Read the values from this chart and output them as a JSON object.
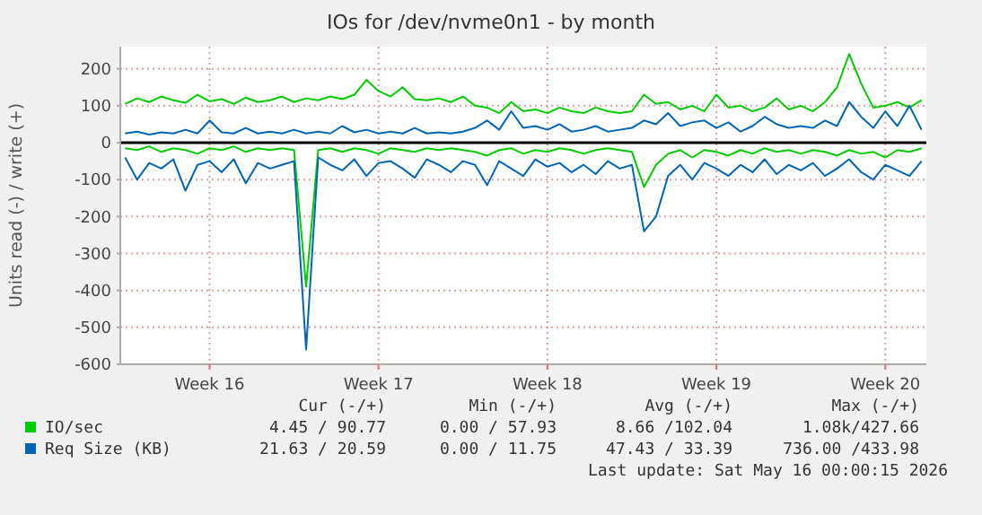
{
  "chart_data": {
    "type": "line",
    "title": "IOs for /dev/nvme0n1 - by month",
    "ylabel": "Units read (-) / write (+)",
    "categories": [
      null,
      null,
      null,
      null,
      null,
      null,
      null,
      "Week 16",
      null,
      null,
      null,
      null,
      null,
      null,
      null,
      null,
      null,
      null,
      null,
      null,
      null,
      "Week 17",
      null,
      null,
      null,
      null,
      null,
      null,
      null,
      null,
      null,
      null,
      null,
      null,
      null,
      "Week 18",
      null,
      null,
      null,
      null,
      null,
      null,
      null,
      null,
      null,
      null,
      null,
      null,
      null,
      "Week 19",
      null,
      null,
      null,
      null,
      null,
      null,
      null,
      null,
      null,
      null,
      null,
      null,
      null,
      "Week 20",
      null,
      null,
      null
    ],
    "series": [
      {
        "name": "IO/sec",
        "color": "#00cc00",
        "values": [
          105,
          120,
          110,
          125,
          115,
          108,
          130,
          112,
          118,
          105,
          122,
          110,
          115,
          125,
          110,
          120,
          115,
          125,
          118,
          130,
          170,
          140,
          125,
          150,
          118,
          115,
          120,
          110,
          125,
          100,
          95,
          80,
          110,
          85,
          90,
          80,
          95,
          85,
          80,
          95,
          85,
          80,
          85,
          130,
          105,
          110,
          90,
          100,
          85,
          130,
          95,
          100,
          85,
          95,
          120,
          90,
          100,
          85,
          110,
          150,
          240,
          160,
          95,
          100,
          110,
          95,
          115
        ]
      },
      {
        "color": "#00cc00",
        "values": [
          -15,
          -20,
          -10,
          -25,
          -15,
          -20,
          -30,
          -15,
          -20,
          -10,
          -25,
          -15,
          -20,
          -15,
          -20,
          -390,
          -20,
          -15,
          -25,
          -15,
          -20,
          -30,
          -15,
          -20,
          -25,
          -15,
          -20,
          -15,
          -20,
          -25,
          -35,
          -20,
          -15,
          -30,
          -20,
          -25,
          -15,
          -20,
          -30,
          -20,
          -15,
          -20,
          -25,
          -120,
          -60,
          -30,
          -20,
          -40,
          -20,
          -25,
          -35,
          -20,
          -30,
          -15,
          -25,
          -20,
          -30,
          -20,
          -25,
          -35,
          -20,
          -30,
          -25,
          -40,
          -20,
          -25,
          -15
        ]
      },
      {
        "name": "Req Size (KB)",
        "color": "#0066b3",
        "values": [
          25,
          30,
          22,
          28,
          25,
          35,
          25,
          60,
          28,
          25,
          40,
          25,
          30,
          25,
          35,
          25,
          30,
          25,
          45,
          28,
          35,
          25,
          30,
          25,
          40,
          25,
          28,
          25,
          30,
          40,
          60,
          35,
          85,
          40,
          45,
          35,
          50,
          30,
          35,
          45,
          30,
          35,
          40,
          60,
          50,
          80,
          45,
          55,
          60,
          40,
          55,
          30,
          45,
          70,
          50,
          40,
          45,
          40,
          60,
          45,
          110,
          70,
          40,
          85,
          45,
          100,
          35
        ]
      },
      {
        "color": "#0066b3",
        "values": [
          -40,
          -100,
          -55,
          -70,
          -45,
          -130,
          -60,
          -50,
          -80,
          -45,
          -110,
          -55,
          -70,
          -60,
          -50,
          -560,
          -40,
          -60,
          -75,
          -45,
          -90,
          -55,
          -50,
          -70,
          -95,
          -45,
          -60,
          -80,
          -50,
          -60,
          -115,
          -50,
          -70,
          -90,
          -45,
          -65,
          -55,
          -80,
          -60,
          -85,
          -50,
          -70,
          -60,
          -240,
          -200,
          -90,
          -60,
          -100,
          -55,
          -70,
          -90,
          -60,
          -80,
          -45,
          -85,
          -60,
          -75,
          -55,
          -90,
          -70,
          -45,
          -80,
          -100,
          -60,
          -75,
          -90,
          -50
        ]
      }
    ],
    "ylim": [
      -600,
      260
    ],
    "yticks": [
      -600,
      -500,
      -400,
      -300,
      -200,
      -100,
      0,
      100,
      200
    ],
    "grid": true,
    "line_style": "solid",
    "legend": "bottom",
    "ref_lines": [
      {
        "axis": "y",
        "value": 0,
        "color": "#000000"
      }
    ],
    "annotations": [
      "Cur (-/+)",
      "Min (-/+)",
      "Avg (-/+)",
      "Max (-/+)",
      "4.45 / 90.77",
      "0.00 / 57.93",
      "8.66 /102.04",
      "1.08k/427.66",
      "21.63 / 20.59",
      "0.00 / 11.75",
      "47.43 / 33.39",
      "736.00 /433.98",
      "Last update: Sat May 16 00:00:15 2026"
    ]
  }
}
